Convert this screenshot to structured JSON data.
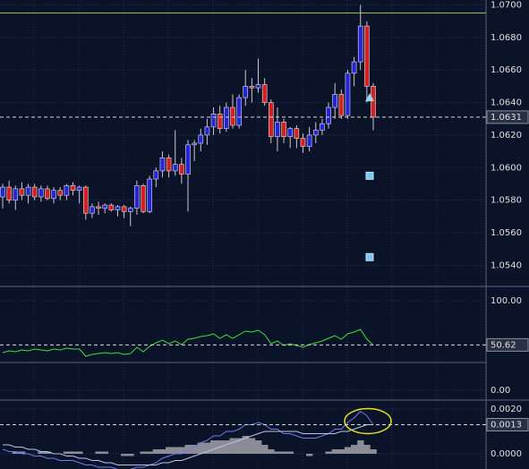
{
  "chart_data": [
    {
      "type": "candlestick",
      "candles": [
        [
          1.0582,
          1.059,
          1.0575,
          1.0588
        ],
        [
          1.0588,
          1.0592,
          1.0578,
          1.058
        ],
        [
          1.058,
          1.0589,
          1.0574,
          1.0587
        ],
        [
          1.0587,
          1.0591,
          1.058,
          1.0583
        ],
        [
          1.0583,
          1.059,
          1.0578,
          1.0588
        ],
        [
          1.0588,
          1.059,
          1.058,
          1.0582
        ],
        [
          1.0582,
          1.0589,
          1.0579,
          1.0587
        ],
        [
          1.0587,
          1.0589,
          1.058,
          1.0581
        ],
        [
          1.0581,
          1.0588,
          1.0578,
          1.0586
        ],
        [
          1.0586,
          1.0588,
          1.058,
          1.0583
        ],
        [
          1.0583,
          1.059,
          1.058,
          1.0589
        ],
        [
          1.0589,
          1.0591,
          1.0583,
          1.0586
        ],
        [
          1.0586,
          1.0589,
          1.0578,
          1.0588
        ],
        [
          1.0588,
          1.0589,
          1.0568,
          1.0572
        ],
        [
          1.0572,
          1.0578,
          1.0569,
          1.0576
        ],
        [
          1.0576,
          1.0579,
          1.0571,
          1.0575
        ],
        [
          1.0575,
          1.0578,
          1.0572,
          1.0577
        ],
        [
          1.0577,
          1.0578,
          1.0573,
          1.0574
        ],
        [
          1.0574,
          1.0577,
          1.057,
          1.0576
        ],
        [
          1.0576,
          1.0577,
          1.0569,
          1.0573
        ],
        [
          1.0573,
          1.0576,
          1.0564,
          1.0575
        ],
        [
          1.0575,
          1.0592,
          1.0571,
          1.0589
        ],
        [
          1.0589,
          1.059,
          1.0572,
          1.0573
        ],
        [
          1.0573,
          1.0595,
          1.0572,
          1.0593
        ],
        [
          1.0593,
          1.06,
          1.0588,
          1.0598
        ],
        [
          1.0598,
          1.061,
          1.0594,
          1.0606
        ],
        [
          1.0606,
          1.0608,
          1.0594,
          1.0598
        ],
        [
          1.0598,
          1.0623,
          1.0595,
          1.0602
        ],
        [
          1.0602,
          1.0606,
          1.059,
          1.0596
        ],
        [
          1.0596,
          1.0617,
          1.0573,
          1.0614
        ],
        [
          1.0614,
          1.0617,
          1.0604,
          1.0615
        ],
        [
          1.0615,
          1.0624,
          1.061,
          1.062
        ],
        [
          1.062,
          1.063,
          1.0614,
          1.0625
        ],
        [
          1.0625,
          1.0637,
          1.062,
          1.0633
        ],
        [
          1.0633,
          1.0638,
          1.0621,
          1.0624
        ],
        [
          1.0624,
          1.064,
          1.0622,
          1.0637
        ],
        [
          1.0637,
          1.0645,
          1.0624,
          1.0626
        ],
        [
          1.0626,
          1.0645,
          1.0624,
          1.0643
        ],
        [
          1.0643,
          1.066,
          1.0638,
          1.065
        ],
        [
          1.065,
          1.0655,
          1.064,
          1.0649
        ],
        [
          1.0649,
          1.0667,
          1.0646,
          1.0651
        ],
        [
          1.0651,
          1.0655,
          1.0638,
          1.064
        ],
        [
          1.064,
          1.0642,
          1.0615,
          1.0619
        ],
        [
          1.0619,
          1.0637,
          1.061,
          1.0628
        ],
        [
          1.0628,
          1.063,
          1.0615,
          1.0619
        ],
        [
          1.0619,
          1.0625,
          1.0612,
          1.0624
        ],
        [
          1.0624,
          1.0626,
          1.0612,
          1.0618
        ],
        [
          1.0618,
          1.0621,
          1.0609,
          1.0613
        ],
        [
          1.0613,
          1.0625,
          1.061,
          1.062
        ],
        [
          1.062,
          1.0628,
          1.0615,
          1.0623
        ],
        [
          1.0623,
          1.063,
          1.062,
          1.0627
        ],
        [
          1.0627,
          1.064,
          1.0624,
          1.0637
        ],
        [
          1.0637,
          1.0652,
          1.063,
          1.0645
        ],
        [
          1.0645,
          1.0648,
          1.063,
          1.0632
        ],
        [
          1.0632,
          1.066,
          1.063,
          1.0658
        ],
        [
          1.0658,
          1.0668,
          1.065,
          1.0665
        ],
        [
          1.0665,
          1.07,
          1.066,
          1.0687
        ],
        [
          1.0687,
          1.069,
          1.064,
          1.065
        ],
        [
          1.065,
          1.0652,
          1.0623,
          1.0631
        ]
      ],
      "up_color": "#2424d8",
      "down_color": "#d42020",
      "ylim": [
        1.0527,
        1.0703
      ],
      "yticks": [
        {
          "value": 1.07,
          "label": "1.0700"
        },
        {
          "value": 1.068,
          "label": "1.0680"
        },
        {
          "value": 1.066,
          "label": "1.0660"
        },
        {
          "value": 1.064,
          "label": "1.0640"
        },
        {
          "value": 1.062,
          "label": "1.0620"
        },
        {
          "value": 1.06,
          "label": "1.0600"
        },
        {
          "value": 1.058,
          "label": "1.0580"
        },
        {
          "value": 1.056,
          "label": "1.0560"
        },
        {
          "value": 1.054,
          "label": "1.0540"
        }
      ],
      "current": 1.0631,
      "level": 1.0695,
      "level_color": "#8fc060",
      "markers": [
        {
          "index": 58,
          "value": 1.0643,
          "shape": "triangle"
        },
        {
          "index": 58,
          "value": 1.0595,
          "shape": "square"
        },
        {
          "index": 58,
          "value": 1.0545,
          "shape": "square"
        }
      ],
      "grid": true
    },
    {
      "type": "line",
      "values": [
        42,
        44,
        43,
        45,
        44,
        46,
        45,
        44,
        46,
        45,
        47,
        46,
        46,
        38,
        40,
        41,
        42,
        41,
        42,
        40,
        41,
        48,
        43,
        49,
        53,
        56,
        52,
        55,
        51,
        57,
        58,
        60,
        61,
        63,
        58,
        62,
        58,
        62,
        66,
        65,
        67,
        62,
        52,
        55,
        50,
        52,
        50,
        48,
        51,
        53,
        55,
        58,
        61,
        57,
        63,
        65,
        68,
        57,
        50.62
      ],
      "color": "#3ce03c",
      "ylim": [
        -10,
        114
      ],
      "yticks": [
        {
          "value": 100,
          "label": "100.00"
        },
        {
          "value": 0,
          "label": "0.00"
        }
      ],
      "current": 50.62,
      "grid": true
    },
    {
      "type": "macd",
      "series": [
        {
          "name": "histogram",
          "color": "#8c8c96",
          "values": [
            0.0,
            0.0,
            0.0001,
            0.0001,
            0.0,
            0.0,
            0.0001,
            0.0001,
            0.0,
            0.0,
            0.0001,
            0.0001,
            0.0001,
            0.0,
            0.0,
            0.0001,
            0.0001,
            0.0,
            0.0,
            -0.0001,
            -0.0001,
            0.0,
            0.0001,
            0.0001,
            0.0002,
            0.0002,
            0.0003,
            0.0003,
            0.0003,
            0.0004,
            0.0004,
            0.0005,
            0.0005,
            0.0006,
            0.0006,
            0.0006,
            0.0007,
            0.0007,
            0.0008,
            0.0007,
            0.0006,
            0.0004,
            0.0002,
            0.0001,
            0.0001,
            0.0001,
            0.0,
            0.0,
            -0.0001,
            0.0,
            0.0,
            0.0001,
            0.0002,
            0.0002,
            0.0003,
            0.0004,
            0.0006,
            0.0004,
            0.0002
          ]
        },
        {
          "name": "macd",
          "color": "#6a7cf0",
          "values": [
            0.0002,
            0.0001,
            0.0001,
            0.0,
            0.0,
            -0.0001,
            -0.0001,
            -0.0002,
            -0.0002,
            -0.0003,
            -0.0003,
            -0.0003,
            -0.0004,
            -0.0005,
            -0.0005,
            -0.0006,
            -0.0006,
            -0.0006,
            -0.0007,
            -0.0007,
            -0.0007,
            -0.0006,
            -0.0006,
            -0.0005,
            -0.0004,
            -0.0002,
            -0.0001,
            0.0,
            0.0,
            0.0002,
            0.0003,
            0.0005,
            0.0006,
            0.0008,
            0.0008,
            0.001,
            0.001,
            0.0011,
            0.0013,
            0.0013,
            0.0014,
            0.0013,
            0.0011,
            0.0011,
            0.0009,
            0.0009,
            0.0008,
            0.0007,
            0.0007,
            0.0007,
            0.0008,
            0.0009,
            0.0011,
            0.0011,
            0.0014,
            0.0016,
            0.0019,
            0.0017,
            0.0013
          ]
        },
        {
          "name": "signal",
          "color": "#b8c4e8",
          "values": [
            0.0004,
            0.0004,
            0.0003,
            0.0003,
            0.0002,
            0.0002,
            0.0001,
            0.0001,
            0.0,
            0.0,
            -0.0001,
            -0.0001,
            -0.0002,
            -0.0002,
            -0.0003,
            -0.0003,
            -0.0004,
            -0.0004,
            -0.0005,
            -0.0005,
            -0.0005,
            -0.0005,
            -0.0005,
            -0.0005,
            -0.0005,
            -0.0004,
            -0.0004,
            -0.0003,
            -0.0003,
            -0.0002,
            -0.0001,
            0.0,
            0.0001,
            0.0002,
            0.0003,
            0.0004,
            0.0005,
            0.0006,
            0.0007,
            0.0008,
            0.0009,
            0.001,
            0.001,
            0.001,
            0.001,
            0.001,
            0.001,
            0.0009,
            0.0009,
            0.0009,
            0.0009,
            0.0009,
            0.0009,
            0.001,
            0.001,
            0.0011,
            0.0012,
            0.0013,
            0.0013
          ]
        }
      ],
      "ylim": [
        -0.00068,
        0.00236
      ],
      "yticks": [
        {
          "value": 0.002,
          "label": "0.0020"
        },
        {
          "value": 0,
          "label": "0.0000"
        }
      ],
      "current": {
        "value": 0.0013,
        "label": "0.0013"
      },
      "highlight_color": "#e8e020",
      "grid": true
    }
  ]
}
